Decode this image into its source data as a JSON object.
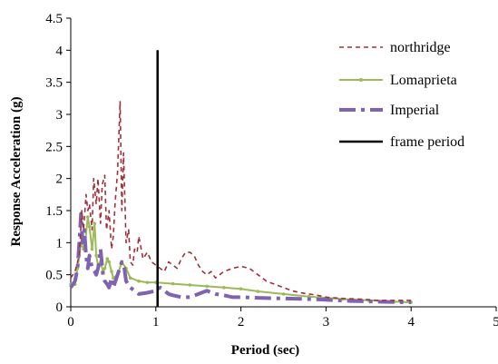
{
  "chart_data": {
    "type": "line",
    "title": "",
    "xlabel": "Period (sec)",
    "ylabel": "Response Acceleration (g)",
    "xlim": [
      0,
      5
    ],
    "ylim": [
      0,
      4.5
    ],
    "x_ticks": [
      "0",
      "1",
      "2",
      "3",
      "4",
      "5"
    ],
    "y_ticks": [
      "0",
      "0.5",
      "1",
      "1.5",
      "2",
      "2.5",
      "3",
      "3.5",
      "4",
      "4.5"
    ],
    "grid": false,
    "legend_position": "top-right",
    "series": [
      {
        "name": "northridge",
        "color": "#A0303A",
        "style": "dashed",
        "x": [
          0.0,
          0.05,
          0.1,
          0.13,
          0.15,
          0.18,
          0.2,
          0.22,
          0.25,
          0.27,
          0.3,
          0.32,
          0.35,
          0.37,
          0.4,
          0.42,
          0.45,
          0.48,
          0.5,
          0.52,
          0.55,
          0.58,
          0.6,
          0.62,
          0.65,
          0.68,
          0.7,
          0.73,
          0.75,
          0.78,
          0.8,
          0.85,
          0.9,
          0.95,
          1.0,
          1.05,
          1.1,
          1.15,
          1.2,
          1.25,
          1.3,
          1.35,
          1.4,
          1.45,
          1.5,
          1.55,
          1.6,
          1.65,
          1.7,
          1.8,
          1.9,
          2.0,
          2.1,
          2.2,
          2.3,
          2.4,
          2.5,
          2.6,
          2.7,
          2.8,
          2.9,
          3.0,
          3.2,
          3.4,
          3.6,
          3.8,
          4.0
        ],
        "y": [
          0.45,
          0.55,
          0.8,
          1.5,
          1.2,
          1.75,
          1.5,
          1.6,
          1.2,
          2.0,
          1.6,
          2.0,
          1.3,
          1.9,
          2.05,
          1.2,
          1.5,
          0.9,
          1.1,
          1.6,
          2.1,
          3.2,
          1.5,
          2.4,
          1.0,
          1.2,
          0.7,
          0.65,
          0.9,
          0.85,
          1.1,
          0.75,
          0.85,
          0.7,
          0.65,
          0.6,
          0.55,
          0.7,
          0.65,
          0.6,
          0.75,
          0.85,
          0.85,
          0.8,
          0.65,
          0.55,
          0.5,
          0.55,
          0.45,
          0.55,
          0.6,
          0.63,
          0.6,
          0.5,
          0.4,
          0.35,
          0.3,
          0.25,
          0.22,
          0.2,
          0.18,
          0.15,
          0.13,
          0.12,
          0.1,
          0.1,
          0.1
        ]
      },
      {
        "name": "Lomaprieta",
        "color": "#9BBB59",
        "style": "solid-marker",
        "x": [
          0.0,
          0.05,
          0.08,
          0.1,
          0.12,
          0.15,
          0.17,
          0.2,
          0.22,
          0.25,
          0.28,
          0.3,
          0.32,
          0.35,
          0.38,
          0.4,
          0.43,
          0.45,
          0.48,
          0.5,
          0.55,
          0.6,
          0.65,
          0.7,
          0.8,
          0.9,
          1.0,
          1.2,
          1.4,
          1.6,
          1.8,
          2.0,
          2.2,
          2.5,
          2.8,
          3.0,
          3.2,
          3.5,
          3.8,
          4.0
        ],
        "y": [
          0.35,
          0.35,
          0.6,
          0.8,
          1.0,
          0.9,
          1.0,
          1.4,
          1.25,
          0.9,
          1.3,
          0.8,
          0.65,
          0.7,
          0.55,
          0.6,
          0.75,
          0.7,
          0.55,
          0.45,
          0.5,
          0.7,
          0.6,
          0.45,
          0.4,
          0.38,
          0.38,
          0.36,
          0.34,
          0.32,
          0.3,
          0.28,
          0.24,
          0.2,
          0.16,
          0.14,
          0.12,
          0.1,
          0.08,
          0.07
        ]
      },
      {
        "name": "Imperial",
        "color": "#7F62B0",
        "style": "dash-dot",
        "x": [
          0.0,
          0.05,
          0.08,
          0.1,
          0.12,
          0.14,
          0.16,
          0.18,
          0.2,
          0.22,
          0.25,
          0.28,
          0.3,
          0.33,
          0.35,
          0.38,
          0.4,
          0.43,
          0.45,
          0.48,
          0.5,
          0.55,
          0.6,
          0.63,
          0.65,
          0.7,
          0.75,
          0.8,
          0.9,
          1.0,
          1.05,
          1.1,
          1.15,
          1.2,
          1.3,
          1.4,
          1.5,
          1.6,
          1.7,
          1.8,
          1.9,
          2.0,
          2.2,
          2.5,
          2.8,
          3.0,
          3.3,
          3.6,
          4.0
        ],
        "y": [
          0.3,
          0.4,
          0.6,
          1.0,
          1.45,
          1.0,
          1.2,
          0.8,
          0.6,
          0.8,
          0.6,
          0.55,
          0.5,
          0.65,
          0.9,
          0.5,
          0.4,
          0.35,
          0.3,
          0.45,
          0.3,
          0.5,
          0.7,
          0.6,
          0.4,
          0.3,
          0.25,
          0.2,
          0.22,
          0.25,
          0.3,
          0.25,
          0.2,
          0.18,
          0.15,
          0.15,
          0.2,
          0.25,
          0.2,
          0.18,
          0.15,
          0.15,
          0.14,
          0.13,
          0.12,
          0.11,
          0.09,
          0.08,
          0.07
        ]
      },
      {
        "name": "frame period",
        "color": "#000000",
        "style": "solid",
        "x": [
          1.02,
          1.02
        ],
        "y": [
          0,
          4.0
        ]
      }
    ]
  }
}
